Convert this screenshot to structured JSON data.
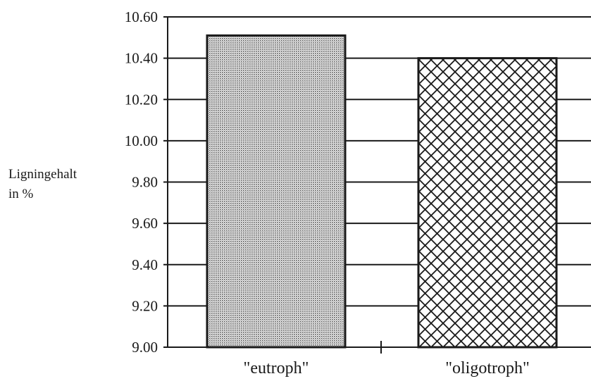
{
  "chart_data": {
    "type": "bar",
    "title": "",
    "ylabel_lines": [
      "Ligningehalt",
      "in %"
    ],
    "xlabel": "",
    "categories": [
      "\"eutroph\"",
      "\"oligotroph\""
    ],
    "values": [
      10.51,
      10.4
    ],
    "ylim": [
      9.0,
      10.6
    ],
    "yticks": [
      "10.60",
      "10.40",
      "10.20",
      "10.00",
      "9.80",
      "9.60",
      "9.40",
      "9.20",
      "9.00"
    ],
    "grid": true,
    "legend": "none",
    "bar_fills": [
      "dotted-gray",
      "crosshatch"
    ]
  },
  "colors": {
    "axis": "#1a1a1a",
    "bar_outline": "#1a1a1a",
    "dot_fill": "#555555",
    "hatch": "#1a1a1a"
  }
}
